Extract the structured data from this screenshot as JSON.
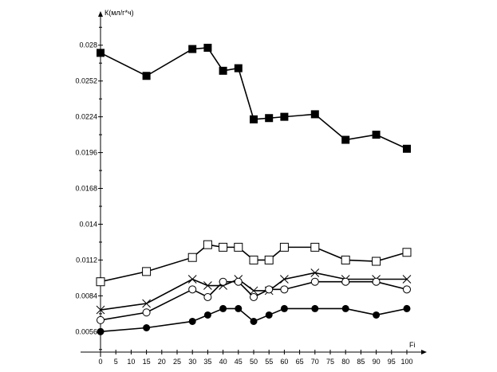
{
  "chart_data": {
    "type": "line",
    "title": "",
    "xlabel": "Fi",
    "ylabel": "К(мл/г*ч)",
    "xlim": [
      0,
      100
    ],
    "ylim": [
      0.004,
      0.0306
    ],
    "grid": false,
    "x_ticks": [
      "0",
      "5",
      "10",
      "15",
      "20",
      "25",
      "30",
      "35",
      "40",
      "45",
      "50",
      "55",
      "60",
      "65",
      "70",
      "75",
      "80",
      "85",
      "90",
      "95",
      "100"
    ],
    "y_ticks": [
      "0.0056",
      "0.0084",
      "0.0112",
      "0.014",
      "0.0168",
      "0.0196",
      "0.0224",
      "0.0252",
      "0.028"
    ],
    "x": [
      0,
      15,
      30,
      35,
      40,
      45,
      50,
      55,
      60,
      70,
      80,
      90,
      100
    ],
    "series": [
      {
        "name": "filled-square",
        "marker": "filled-square",
        "values": [
          0.0274,
          0.0256,
          0.0277,
          0.0278,
          0.026,
          0.0262,
          0.0222,
          0.0223,
          0.0224,
          0.0226,
          0.0206,
          0.021,
          0.0199
        ]
      },
      {
        "name": "open-square",
        "marker": "open-square",
        "values": [
          0.0095,
          0.0103,
          0.0114,
          0.0124,
          0.0122,
          0.0122,
          0.0112,
          0.0112,
          0.0122,
          0.0122,
          0.0112,
          0.0111,
          0.0118
        ]
      },
      {
        "name": "cross",
        "marker": "cross",
        "values": [
          0.0073,
          0.0078,
          0.0097,
          0.0092,
          0.0092,
          0.0097,
          0.0088,
          0.0088,
          0.0097,
          0.0102,
          0.0097,
          0.0097,
          0.0097
        ]
      },
      {
        "name": "open-circle",
        "marker": "open-circle",
        "values": [
          0.0065,
          0.0071,
          0.0089,
          0.0083,
          0.0095,
          0.0095,
          0.0083,
          0.0089,
          0.0089,
          0.0095,
          0.0095,
          0.0095,
          0.0089
        ]
      },
      {
        "name": "filled-circle",
        "marker": "filled-circle",
        "values": [
          0.0056,
          0.0059,
          0.0064,
          0.0069,
          0.0074,
          0.0074,
          0.0064,
          0.0069,
          0.0074,
          0.0074,
          0.0074,
          0.0069,
          0.0074
        ]
      }
    ]
  }
}
